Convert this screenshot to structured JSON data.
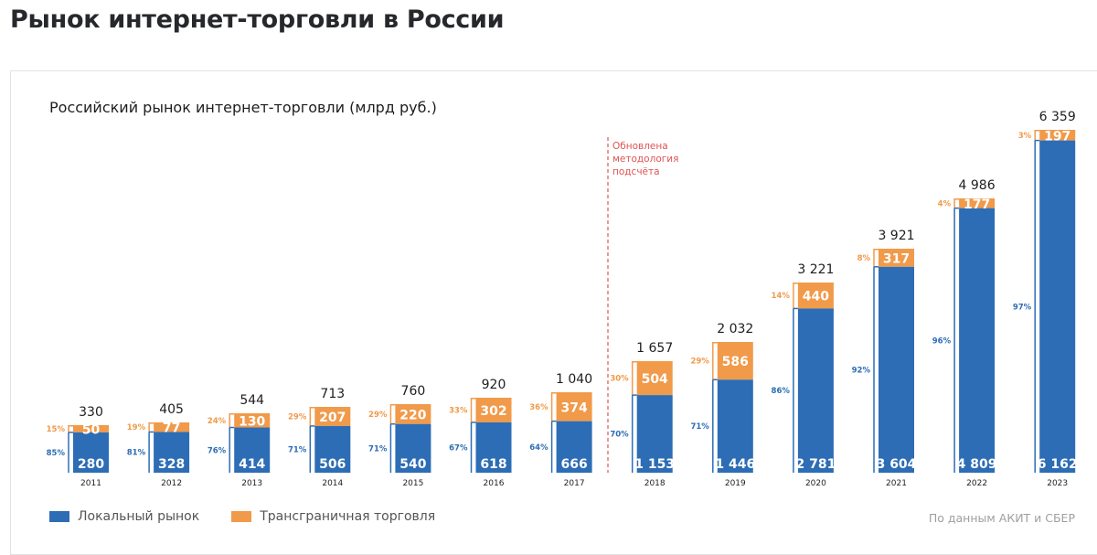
{
  "page": {
    "title": "Рынок интернет-торговли в России"
  },
  "colors": {
    "local": "#2d6db5",
    "cross": "#f09a4a",
    "annotation": "#e05353",
    "total": "#1e1e1e"
  },
  "chart_data": {
    "type": "bar",
    "stacked": true,
    "title": "Российский рынок интернет-торговли (млрд руб.)",
    "xlabel": "",
    "ylabel": "",
    "grid": false,
    "categories": [
      "2011",
      "2012",
      "2013",
      "2014",
      "2015",
      "2016",
      "2017",
      "2018",
      "2019",
      "2020",
      "2021",
      "2022",
      "2023"
    ],
    "series": [
      {
        "name": "Локальный рынок",
        "values": [
          280,
          328,
          414,
          506,
          540,
          618,
          666,
          1153,
          1446,
          2781,
          3604,
          4809,
          6162
        ],
        "value_labels": [
          "280",
          "328",
          "414",
          "506",
          "540",
          "618",
          "666",
          "1 153",
          "1 446",
          "2 781",
          "3 604",
          "4 809",
          "6 162"
        ],
        "share_labels": [
          "85%",
          "81%",
          "76%",
          "71%",
          "71%",
          "67%",
          "64%",
          "70%",
          "71%",
          "86%",
          "92%",
          "96%",
          "97%"
        ]
      },
      {
        "name": "Трансграничная торговля",
        "values": [
          50,
          77,
          130,
          207,
          220,
          302,
          374,
          504,
          586,
          440,
          317,
          177,
          197
        ],
        "value_labels": [
          "50",
          "77",
          "130",
          "207",
          "220",
          "302",
          "374",
          "504",
          "586",
          "440",
          "317",
          "177",
          "197"
        ],
        "share_labels": [
          "15%",
          "19%",
          "24%",
          "29%",
          "29%",
          "33%",
          "36%",
          "30%",
          "29%",
          "14%",
          "8%",
          "4%",
          "3%"
        ]
      }
    ],
    "totals": [
      330,
      405,
      544,
      713,
      760,
      920,
      1040,
      1657,
      2032,
      3221,
      3921,
      4986,
      6359
    ],
    "total_labels": [
      "330",
      "405",
      "544",
      "713",
      "760",
      "920",
      "1 040",
      "1 657",
      "2 032",
      "3 221",
      "3 921",
      "4 986",
      "6 359"
    ],
    "annotations": [
      {
        "between": [
          "2017",
          "2018"
        ],
        "type": "dashed-vertical-line",
        "lines": [
          "Обновлена",
          "методология",
          "подсчёта"
        ]
      }
    ],
    "legend": {
      "position": "bottom-left",
      "entries": [
        "Локальный рынок",
        "Трансграничная торговля"
      ]
    },
    "source": "По данным АКИТ и СБЕР"
  }
}
